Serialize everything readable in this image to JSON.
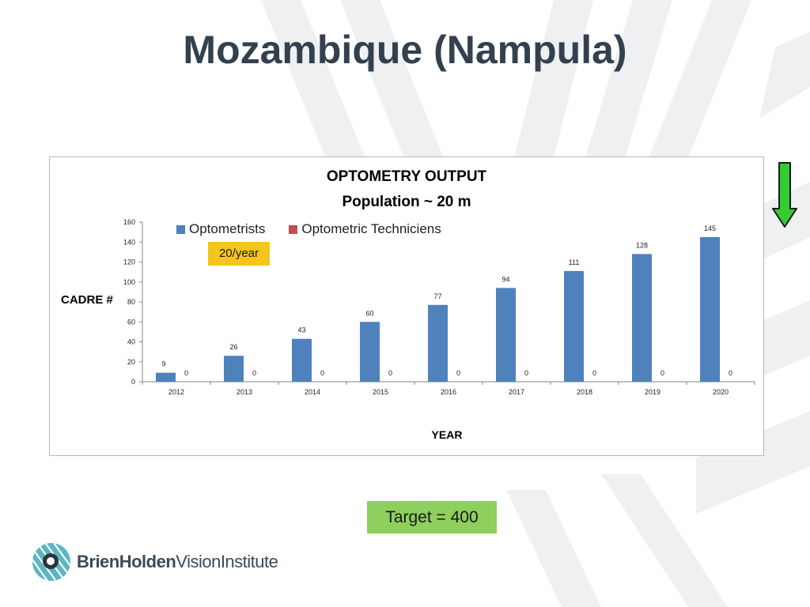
{
  "slide": {
    "title": "Mozambique (Nampula)",
    "callout": "20/year",
    "target_label": "Target = 400",
    "logo": {
      "name_bold": "BrienHolden",
      "name_regular": "VisionInstitute"
    },
    "arrow_icon": "green-down-arrow-icon"
  },
  "colors": {
    "title": "#33414f",
    "optometrists": "#4f81bd",
    "technicians": "#c0504d",
    "callout_bg": "#f6c51c",
    "target_bg": "#8fcf5d",
    "arrow": "#33cc33"
  },
  "chart_data": {
    "type": "bar",
    "title": "OPTOMETRY OUTPUT",
    "subtitle": "Population ~ 20 m",
    "xlabel": "YEAR",
    "ylabel": "CADRE #",
    "categories": [
      "2012",
      "2013",
      "2014",
      "2015",
      "2016",
      "2017",
      "2018",
      "2019",
      "2020"
    ],
    "series": [
      {
        "name": "Optometrists",
        "values": [
          9,
          26,
          43,
          60,
          77,
          94,
          111,
          128,
          145
        ]
      },
      {
        "name": "Optometric Techniciens",
        "values": [
          0,
          0,
          0,
          0,
          0,
          0,
          0,
          0,
          0
        ]
      }
    ],
    "ylim": [
      0,
      160
    ],
    "yticks": [
      0,
      20,
      40,
      60,
      80,
      100,
      120,
      140,
      160
    ],
    "data_labels": true,
    "legend_position": "top-left",
    "grid": false
  }
}
